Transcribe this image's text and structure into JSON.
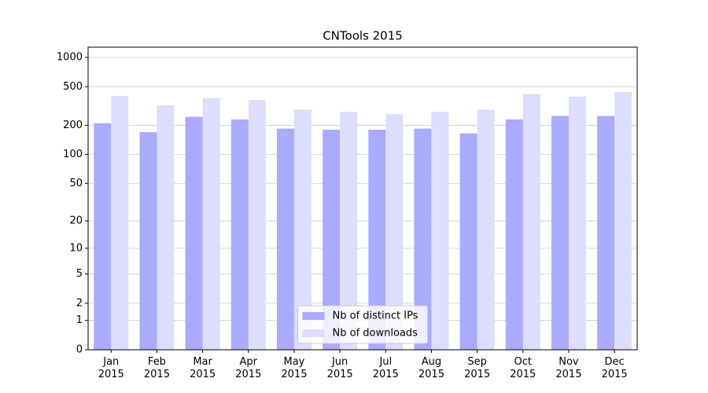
{
  "chart_data": {
    "type": "bar",
    "title": "CNTools 2015",
    "categories": [
      "Jan\n2015",
      "Feb\n2015",
      "Mar\n2015",
      "Apr\n2015",
      "May\n2015",
      "Jun\n2015",
      "Jul\n2015",
      "Aug\n2015",
      "Sep\n2015",
      "Oct\n2015",
      "Nov\n2015",
      "Dec\n2015"
    ],
    "series": [
      {
        "name": "Nb of distinct IPs",
        "color": "#aaaaff",
        "values": [
          210,
          170,
          245,
          230,
          185,
          180,
          180,
          185,
          165,
          230,
          250,
          250
        ]
      },
      {
        "name": "Nb of downloads",
        "color": "#ddddff",
        "values": [
          400,
          320,
          380,
          365,
          290,
          275,
          260,
          275,
          290,
          420,
          395,
          440
        ]
      }
    ],
    "yscale": "log1p",
    "ylim": [
      0,
      1273
    ],
    "yticks": [
      0,
      1,
      2,
      5,
      10,
      20,
      50,
      100,
      200,
      500,
      1000
    ],
    "grid": true,
    "legend": "lower center"
  }
}
